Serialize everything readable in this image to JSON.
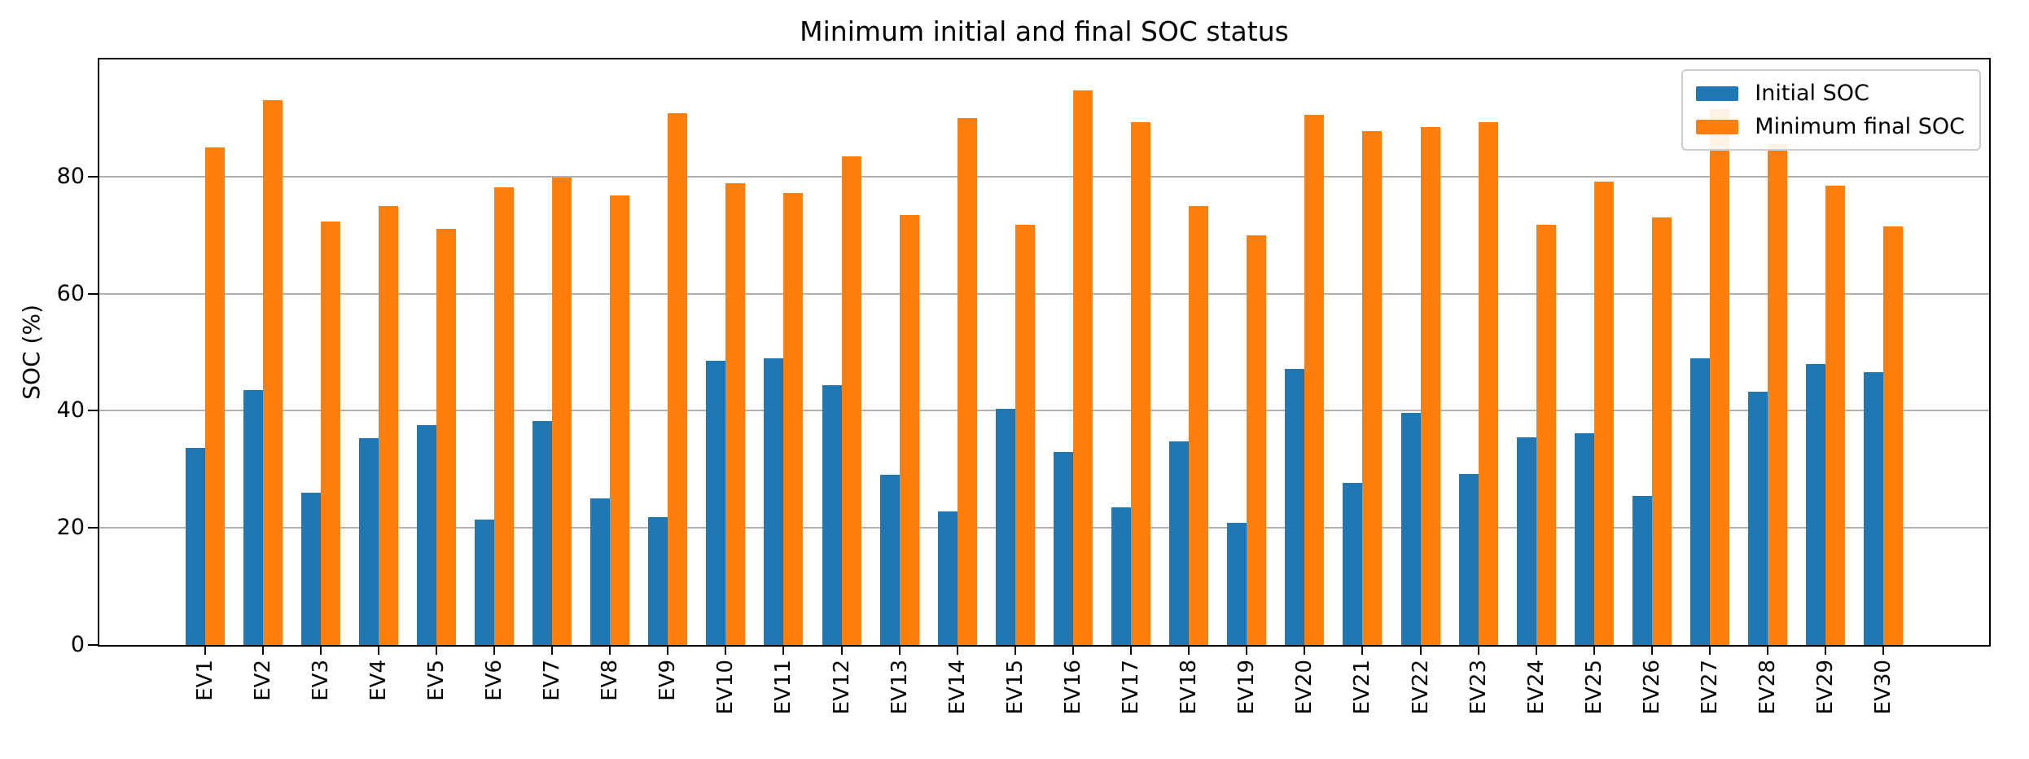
{
  "chart_data": {
    "type": "bar",
    "title": "Minimum initial and final SOC status",
    "xlabel": "",
    "ylabel": "SOC (%)",
    "categories": [
      "EV1",
      "EV2",
      "EV3",
      "EV4",
      "EV5",
      "EV6",
      "EV7",
      "EV8",
      "EV9",
      "EV10",
      "EV11",
      "EV12",
      "EV13",
      "EV14",
      "EV15",
      "EV16",
      "EV17",
      "EV18",
      "EV19",
      "EV20",
      "EV21",
      "EV22",
      "EV23",
      "EV24",
      "EV25",
      "EV26",
      "EV27",
      "EV28",
      "EV29",
      "EV30"
    ],
    "series": [
      {
        "name": "Initial SOC",
        "color": "#1f77b4",
        "values": [
          33.6,
          43.5,
          26.0,
          35.3,
          37.6,
          21.4,
          38.2,
          25.1,
          21.8,
          48.5,
          48.9,
          44.3,
          29.1,
          22.8,
          40.4,
          33.0,
          23.5,
          34.8,
          20.8,
          47.2,
          27.7,
          39.7,
          29.2,
          35.5,
          36.1,
          25.5,
          49.0,
          43.3,
          48.0,
          46.6
        ]
      },
      {
        "name": "Minimum final SOC",
        "color": "#ff7f0e",
        "values": [
          85.0,
          93.1,
          72.3,
          75.0,
          71.1,
          78.1,
          79.9,
          76.8,
          90.8,
          78.8,
          77.2,
          83.5,
          73.5,
          90.0,
          71.7,
          94.7,
          89.3,
          75.0,
          70.0,
          90.6,
          87.7,
          88.4,
          89.3,
          71.8,
          79.1,
          73.0,
          91.5,
          85.6,
          78.4,
          71.5
        ]
      }
    ],
    "ylim": [
      0,
      100
    ],
    "yticks": [
      0,
      20,
      40,
      60,
      80
    ],
    "grid": true,
    "grid_color": "#b0b0b0",
    "legend_position": "upper right",
    "xtick_rotation": 90
  }
}
